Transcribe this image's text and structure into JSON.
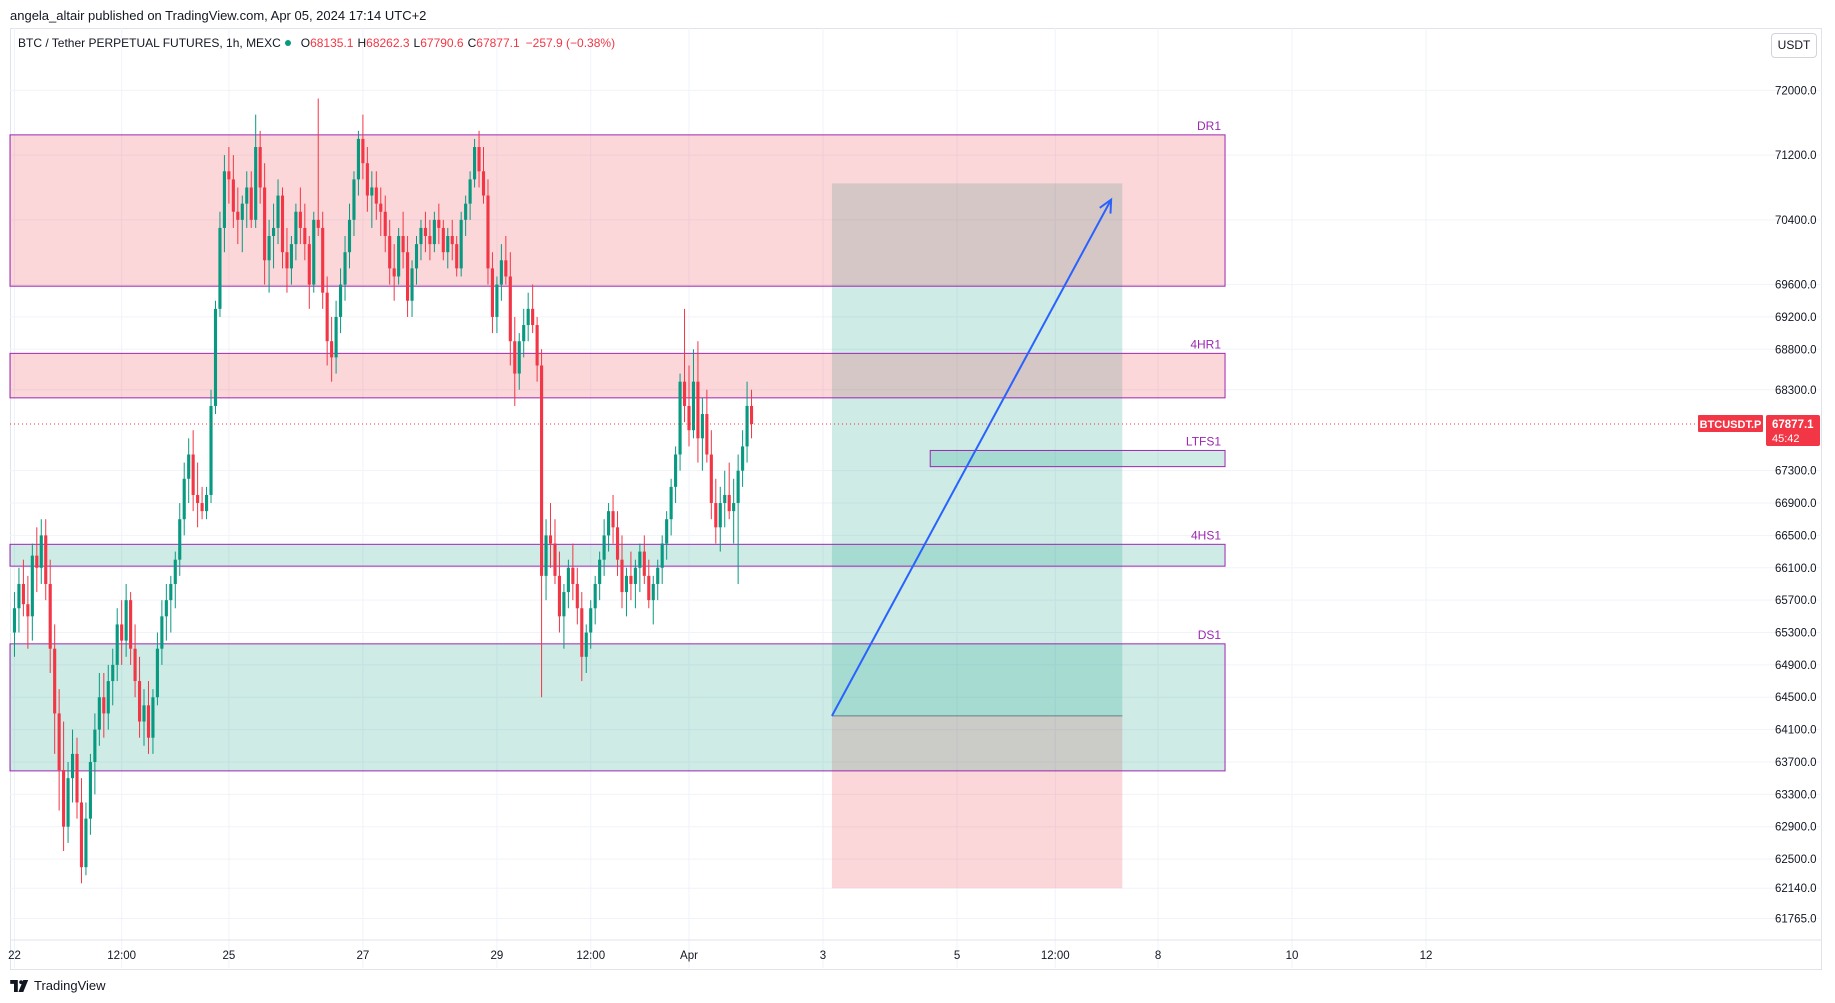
{
  "header": {
    "published": "angela_altair published on TradingView.com, Apr 05, 2024 17:14 UTC+2"
  },
  "legend": {
    "symbol": "BTC / Tether PERPETUAL FUTURES, 1h, MEXC",
    "o_label": "O",
    "o": "68135.1",
    "h_label": "H",
    "h": "68262.3",
    "l_label": "L",
    "l": "67790.6",
    "c_label": "C",
    "c": "67877.1",
    "change": "−257.9 (−0.38%)"
  },
  "currency_button": "USDT",
  "footer": {
    "brand": "TradingView"
  },
  "colors": {
    "up": "#089981",
    "down": "#f23645",
    "zone_purple": "#9c27b0",
    "trend_line": "#2962ff"
  },
  "chart_data": {
    "type": "candlestick",
    "ylim": [
      61500,
      72400
    ],
    "y_ticks": [
      {
        "v": 72000,
        "label": "72000.0"
      },
      {
        "v": 71200,
        "label": "71200.0"
      },
      {
        "v": 70400,
        "label": "70400.0"
      },
      {
        "v": 69600,
        "label": "69600.0"
      },
      {
        "v": 69200,
        "label": "69200.0"
      },
      {
        "v": 68800,
        "label": "68800.0"
      },
      {
        "v": 68300,
        "label": "68300.0"
      },
      {
        "v": 67300,
        "label": "67300.0"
      },
      {
        "v": 66900,
        "label": "66900.0"
      },
      {
        "v": 66500,
        "label": "66500.0"
      },
      {
        "v": 66100,
        "label": "66100.0"
      },
      {
        "v": 65700,
        "label": "65700.0"
      },
      {
        "v": 65300,
        "label": "65300.0"
      },
      {
        "v": 64900,
        "label": "64900.0"
      },
      {
        "v": 64500,
        "label": "64500.0"
      },
      {
        "v": 64100,
        "label": "64100.0"
      },
      {
        "v": 63700,
        "label": "63700.0"
      },
      {
        "v": 63300,
        "label": "63300.0"
      },
      {
        "v": 62900,
        "label": "62900.0"
      },
      {
        "v": 62500,
        "label": "62500.0"
      },
      {
        "v": 62140,
        "label": "62140.0"
      },
      {
        "v": 61765,
        "label": "61765.0"
      }
    ],
    "x_ticks": [
      {
        "t": 0,
        "label": "22"
      },
      {
        "t": 24,
        "label": "12:00"
      },
      {
        "t": 48,
        "label": "25"
      },
      {
        "t": 78,
        "label": "27"
      },
      {
        "t": 108,
        "label": "29"
      },
      {
        "t": 129,
        "label": "12:00"
      },
      {
        "t": 151,
        "label": "Apr"
      },
      {
        "t": 181,
        "label": "3"
      },
      {
        "t": 211,
        "label": "5"
      },
      {
        "t": 233,
        "label": "12:00"
      },
      {
        "t": 256,
        "label": "8"
      },
      {
        "t": 286,
        "label": "10"
      },
      {
        "t": 316,
        "label": "12"
      }
    ],
    "xlim": [
      -1,
      333
    ],
    "last_price": {
      "value": 67877.1,
      "label": "67877.1",
      "symbol": "BTCUSDT.P",
      "countdown": "45:42"
    },
    "zones": [
      {
        "name": "DR1",
        "top": 71450,
        "bottom": 69580,
        "t_end": 271,
        "kind": "resistance"
      },
      {
        "name": "4HR1",
        "top": 68750,
        "bottom": 68200,
        "t_end": 271,
        "kind": "resistance"
      },
      {
        "name": "LTFS1",
        "top": 67550,
        "bottom": 67350,
        "t_start": 205,
        "t_end": 271,
        "kind": "support"
      },
      {
        "name": "4HS1",
        "top": 66390,
        "bottom": 66120,
        "t_end": 271,
        "kind": "support"
      },
      {
        "name": "DS1",
        "top": 65160,
        "bottom": 63590,
        "t_end": 271,
        "kind": "support"
      }
    ],
    "position": {
      "t_start": 183,
      "t_end": 248,
      "entry": 64270,
      "target": 70850,
      "stop": 62140
    },
    "trend_arrow": {
      "t1": 183,
      "p1": 64270,
      "t2": 245.5,
      "p2": 70650
    },
    "candles": [
      [
        65300,
        65800,
        65000,
        65600
      ],
      [
        65600,
        66100,
        65300,
        65900
      ],
      [
        65900,
        66200,
        65500,
        65650
      ],
      [
        65650,
        66000,
        65100,
        65500
      ],
      [
        65500,
        66400,
        65200,
        66250
      ],
      [
        66250,
        66600,
        65800,
        66100
      ],
      [
        66100,
        66700,
        65900,
        66500
      ],
      [
        66500,
        66700,
        65700,
        65900
      ],
      [
        65900,
        66200,
        64800,
        65100
      ],
      [
        65100,
        65400,
        63800,
        64300
      ],
      [
        64300,
        64600,
        63100,
        63600
      ],
      [
        63600,
        64200,
        62600,
        62900
      ],
      [
        62900,
        63700,
        62700,
        63500
      ],
      [
        63500,
        64100,
        63200,
        63800
      ],
      [
        63800,
        64000,
        63000,
        63200
      ],
      [
        63200,
        63500,
        62200,
        62400
      ],
      [
        62400,
        63200,
        62300,
        63000
      ],
      [
        63000,
        63800,
        62800,
        63700
      ],
      [
        63700,
        64300,
        63300,
        64100
      ],
      [
        64100,
        64800,
        63900,
        64500
      ],
      [
        64500,
        64800,
        64000,
        64300
      ],
      [
        64300,
        64900,
        64100,
        64700
      ],
      [
        64700,
        65100,
        64400,
        64900
      ],
      [
        64900,
        65600,
        64700,
        65400
      ],
      [
        65400,
        65700,
        64900,
        65200
      ],
      [
        65200,
        65900,
        65000,
        65700
      ],
      [
        65700,
        65800,
        64900,
        65100
      ],
      [
        65100,
        65400,
        64500,
        64700
      ],
      [
        64700,
        65000,
        64000,
        64200
      ],
      [
        64200,
        64600,
        63900,
        64400
      ],
      [
        64400,
        64700,
        63800,
        64000
      ],
      [
        64000,
        64600,
        63800,
        64500
      ],
      [
        64500,
        65300,
        64400,
        65100
      ],
      [
        65100,
        65700,
        64900,
        65500
      ],
      [
        65500,
        65900,
        65200,
        65700
      ],
      [
        65700,
        66000,
        65300,
        65900
      ],
      [
        65900,
        66300,
        65600,
        66200
      ],
      [
        66200,
        66900,
        66000,
        66700
      ],
      [
        66700,
        67400,
        66500,
        67200
      ],
      [
        67200,
        67700,
        66900,
        67500
      ],
      [
        67500,
        67800,
        66800,
        67000
      ],
      [
        67000,
        67400,
        66600,
        66900
      ],
      [
        66900,
        67100,
        66700,
        66800
      ],
      [
        66800,
        67100,
        66700,
        67000
      ],
      [
        67000,
        68300,
        66900,
        68100
      ],
      [
        68100,
        69400,
        68000,
        69300
      ],
      [
        69300,
        70500,
        69200,
        70300
      ],
      [
        70300,
        71200,
        70000,
        71000
      ],
      [
        71000,
        71300,
        70600,
        70900
      ],
      [
        70900,
        71200,
        70300,
        70500
      ],
      [
        70500,
        70800,
        70100,
        70400
      ],
      [
        70400,
        70700,
        70000,
        70600
      ],
      [
        70600,
        71000,
        70300,
        70800
      ],
      [
        70800,
        71000,
        70300,
        70400
      ],
      [
        70400,
        71700,
        70300,
        71300
      ],
      [
        71300,
        71500,
        70600,
        70800
      ],
      [
        70800,
        71100,
        69600,
        69900
      ],
      [
        69900,
        70400,
        69500,
        70200
      ],
      [
        70200,
        70600,
        69800,
        70300
      ],
      [
        70300,
        70900,
        70100,
        70700
      ],
      [
        70700,
        70800,
        69800,
        70000
      ],
      [
        70000,
        70300,
        69500,
        69800
      ],
      [
        69800,
        70200,
        69600,
        70100
      ],
      [
        70100,
        70600,
        69900,
        70500
      ],
      [
        70500,
        70800,
        70100,
        70300
      ],
      [
        70300,
        70600,
        69900,
        70100
      ],
      [
        70100,
        70200,
        69300,
        69600
      ],
      [
        69600,
        70500,
        69500,
        70400
      ],
      [
        70400,
        71900,
        70200,
        70300
      ],
      [
        70300,
        70500,
        69300,
        69500
      ],
      [
        69500,
        69700,
        68600,
        68900
      ],
      [
        68900,
        69200,
        68400,
        68700
      ],
      [
        68700,
        69400,
        68500,
        69200
      ],
      [
        69200,
        69800,
        69000,
        69600
      ],
      [
        69600,
        70200,
        69400,
        70000
      ],
      [
        70000,
        70600,
        69800,
        70400
      ],
      [
        70400,
        71000,
        70200,
        70900
      ],
      [
        70900,
        71500,
        70700,
        71400
      ],
      [
        71400,
        71700,
        70900,
        71100
      ],
      [
        71100,
        71300,
        70500,
        70700
      ],
      [
        70700,
        71000,
        70300,
        70800
      ],
      [
        70800,
        71000,
        70400,
        70600
      ],
      [
        70600,
        70800,
        70200,
        70500
      ],
      [
        70500,
        70700,
        70000,
        70200
      ],
      [
        70200,
        70400,
        69600,
        69800
      ],
      [
        69800,
        70100,
        69400,
        69700
      ],
      [
        69700,
        70300,
        69600,
        70200
      ],
      [
        70200,
        70500,
        69800,
        70000
      ],
      [
        70000,
        70200,
        69200,
        69400
      ],
      [
        69400,
        69900,
        69200,
        69800
      ],
      [
        69800,
        70200,
        69600,
        70100
      ],
      [
        70100,
        70400,
        69900,
        70300
      ],
      [
        70300,
        70500,
        70000,
        70200
      ],
      [
        70200,
        70400,
        69900,
        70100
      ],
      [
        70100,
        70500,
        70000,
        70400
      ],
      [
        70400,
        70600,
        70100,
        70300
      ],
      [
        70300,
        70400,
        69900,
        70000
      ],
      [
        70000,
        70300,
        69800,
        70200
      ],
      [
        70200,
        70400,
        69900,
        70100
      ],
      [
        70100,
        70200,
        69700,
        69800
      ],
      [
        69800,
        70500,
        69700,
        70400
      ],
      [
        70400,
        70700,
        70200,
        70600
      ],
      [
        70600,
        71000,
        70400,
        70900
      ],
      [
        70900,
        71400,
        70800,
        71300
      ],
      [
        71300,
        71500,
        70800,
        71000
      ],
      [
        71000,
        71300,
        70600,
        70700
      ],
      [
        70700,
        70900,
        69600,
        69800
      ],
      [
        69800,
        70000,
        69000,
        69200
      ],
      [
        69200,
        69700,
        69000,
        69600
      ],
      [
        69600,
        70100,
        69400,
        69900
      ],
      [
        69900,
        70200,
        69600,
        69700
      ],
      [
        69700,
        70000,
        68600,
        68900
      ],
      [
        68900,
        69200,
        68100,
        68500
      ],
      [
        68500,
        69000,
        68300,
        68900
      ],
      [
        68900,
        69300,
        68700,
        69100
      ],
      [
        69100,
        69500,
        68900,
        69300
      ],
      [
        69300,
        69600,
        69000,
        69100
      ],
      [
        69100,
        69200,
        68400,
        68600
      ],
      [
        68600,
        68800,
        64500,
        66000
      ],
      [
        66000,
        66700,
        65700,
        66500
      ],
      [
        66500,
        66900,
        66100,
        66400
      ],
      [
        66400,
        66700,
        65900,
        66000
      ],
      [
        66000,
        66300,
        65300,
        65500
      ],
      [
        65500,
        65900,
        65100,
        65800
      ],
      [
        65800,
        66200,
        65600,
        66100
      ],
      [
        66100,
        66400,
        65700,
        65900
      ],
      [
        65900,
        66100,
        65400,
        65600
      ],
      [
        65600,
        65800,
        64700,
        65000
      ],
      [
        65000,
        65400,
        64800,
        65300
      ],
      [
        65300,
        65700,
        65100,
        65600
      ],
      [
        65600,
        66000,
        65400,
        65900
      ],
      [
        65900,
        66300,
        65700,
        66200
      ],
      [
        66200,
        66700,
        66000,
        66500
      ],
      [
        66500,
        66900,
        66300,
        66800
      ],
      [
        66800,
        67000,
        66400,
        66600
      ],
      [
        66600,
        66800,
        66000,
        66200
      ],
      [
        66200,
        66500,
        65600,
        65800
      ],
      [
        65800,
        66100,
        65500,
        66000
      ],
      [
        66000,
        66300,
        65700,
        65900
      ],
      [
        65900,
        66200,
        65600,
        66100
      ],
      [
        66100,
        66400,
        65800,
        66300
      ],
      [
        66300,
        66500,
        65900,
        66000
      ],
      [
        66000,
        66200,
        65600,
        65700
      ],
      [
        65700,
        66000,
        65400,
        65900
      ],
      [
        65900,
        66200,
        65700,
        66100
      ],
      [
        66100,
        66500,
        65900,
        66400
      ],
      [
        66400,
        66800,
        66200,
        66700
      ],
      [
        66700,
        67200,
        66500,
        67100
      ],
      [
        67100,
        67600,
        66900,
        67500
      ],
      [
        67500,
        68500,
        67300,
        68400
      ],
      [
        68400,
        69300,
        67900,
        68100
      ],
      [
        68100,
        68600,
        67600,
        67800
      ],
      [
        67800,
        68800,
        67700,
        68400
      ],
      [
        68400,
        68900,
        67400,
        67700
      ],
      [
        67700,
        68200,
        67300,
        68000
      ],
      [
        68000,
        68300,
        67400,
        67500
      ],
      [
        67500,
        67800,
        66700,
        66900
      ],
      [
        66900,
        67200,
        66400,
        66600
      ],
      [
        66600,
        67100,
        66300,
        66900
      ],
      [
        66900,
        67300,
        66600,
        67000
      ],
      [
        67000,
        67400,
        66700,
        66800
      ],
      [
        66800,
        67200,
        66400,
        66900
      ],
      [
        66900,
        67500,
        65900,
        67300
      ],
      [
        67300,
        67800,
        67100,
        67600
      ],
      [
        67600,
        68400,
        67400,
        68100
      ],
      [
        68100,
        68300,
        67700,
        67877
      ]
    ]
  }
}
